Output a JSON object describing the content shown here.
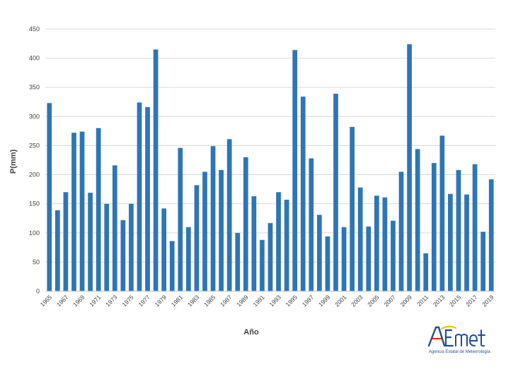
{
  "chart_data": {
    "type": "bar",
    "title": "",
    "xlabel": "Año",
    "ylabel": "P(mm)",
    "ylim": [
      0,
      450
    ],
    "yticks": [
      0,
      50,
      100,
      150,
      200,
      250,
      300,
      350,
      400,
      450
    ],
    "grid": true,
    "legend": "none",
    "bar_color": "#2e75b6",
    "grid_color": "#d9d9d9",
    "categories": [
      "1965",
      "1966",
      "1967",
      "1968",
      "1969",
      "1970",
      "1971",
      "1972",
      "1973",
      "1974",
      "1975",
      "1976",
      "1977",
      "1978",
      "1979",
      "1980",
      "1981",
      "1982",
      "1983",
      "1984",
      "1985",
      "1986",
      "1987",
      "1988",
      "1989",
      "1990",
      "1991",
      "1992",
      "1993",
      "1994",
      "1995",
      "1996",
      "1997",
      "1998",
      "1999",
      "2000",
      "2001",
      "2002",
      "2003",
      "2004",
      "2005",
      "2006",
      "2007",
      "2008",
      "2009",
      "2010",
      "2011",
      "2012",
      "2013",
      "2014",
      "2015",
      "2016",
      "2017",
      "2018",
      "2019"
    ],
    "x_tick_labels": [
      "1965",
      "1967",
      "1969",
      "1971",
      "1973",
      "1975",
      "1977",
      "1979",
      "1981",
      "1983",
      "1985",
      "1987",
      "1989",
      "1991",
      "1993",
      "1995",
      "1997",
      "1999",
      "2001",
      "2003",
      "2005",
      "2007",
      "2009",
      "2011",
      "2013",
      "2015",
      "2017",
      "2019"
    ],
    "values": [
      323,
      139,
      170,
      272,
      274,
      169,
      280,
      150,
      216,
      122,
      150,
      324,
      316,
      415,
      142,
      86,
      246,
      110,
      182,
      205,
      249,
      208,
      261,
      100,
      230,
      163,
      88,
      117,
      170,
      157,
      414,
      334,
      228,
      131,
      94,
      339,
      110,
      282,
      178,
      111,
      164,
      161,
      121,
      205,
      424,
      244,
      65,
      220,
      267,
      167,
      208,
      166,
      218,
      102,
      192
    ]
  },
  "branding": {
    "logo_name": "AEMet",
    "logo_subtitle": "Agencia Estatal de Meteorología",
    "colors": {
      "primary": "#1f4e9a",
      "accent_red": "#e2231a",
      "accent_yellow": "#f5b800"
    }
  }
}
